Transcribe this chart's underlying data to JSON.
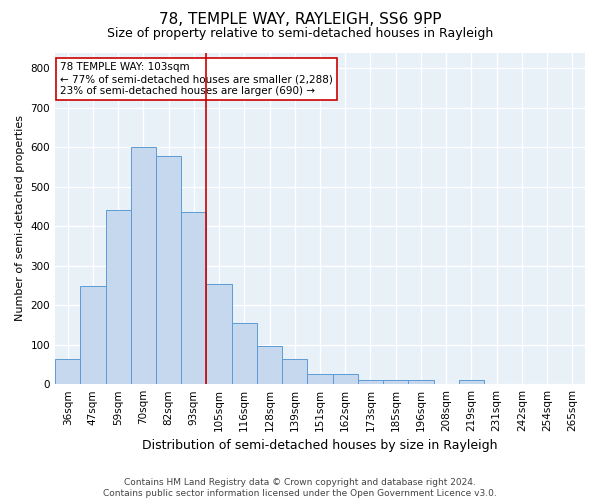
{
  "title": "78, TEMPLE WAY, RAYLEIGH, SS6 9PP",
  "subtitle": "Size of property relative to semi-detached houses in Rayleigh",
  "xlabel": "Distribution of semi-detached houses by size in Rayleigh",
  "ylabel": "Number of semi-detached properties",
  "categories": [
    "36sqm",
    "47sqm",
    "59sqm",
    "70sqm",
    "82sqm",
    "93sqm",
    "105sqm",
    "116sqm",
    "128sqm",
    "139sqm",
    "151sqm",
    "162sqm",
    "173sqm",
    "185sqm",
    "196sqm",
    "208sqm",
    "219sqm",
    "231sqm",
    "242sqm",
    "254sqm",
    "265sqm"
  ],
  "values": [
    63,
    248,
    440,
    600,
    578,
    437,
    253,
    155,
    97,
    63,
    25,
    25,
    10,
    10,
    10,
    0,
    10,
    0,
    0,
    0,
    0
  ],
  "bar_color": "#c5d8ed",
  "bar_edge_color": "#5b9bd5",
  "vline_x_index": 5.5,
  "annotation_line1": "78 TEMPLE WAY: 103sqm",
  "annotation_line2": "← 77% of semi-detached houses are smaller (2,288)",
  "annotation_line3": "23% of semi-detached houses are larger (690) →",
  "vline_color": "#cc0000",
  "annotation_box_edge": "#cc0000",
  "footer_line1": "Contains HM Land Registry data © Crown copyright and database right 2024.",
  "footer_line2": "Contains public sector information licensed under the Open Government Licence v3.0.",
  "ylim": [
    0,
    840
  ],
  "yticks": [
    0,
    100,
    200,
    300,
    400,
    500,
    600,
    700,
    800
  ],
  "background_color": "#e8f0f8",
  "grid_color": "#ffffff",
  "title_fontsize": 11,
  "subtitle_fontsize": 9,
  "xlabel_fontsize": 9,
  "ylabel_fontsize": 8,
  "tick_fontsize": 7.5,
  "annotation_fontsize": 7.5,
  "footer_fontsize": 6.5
}
